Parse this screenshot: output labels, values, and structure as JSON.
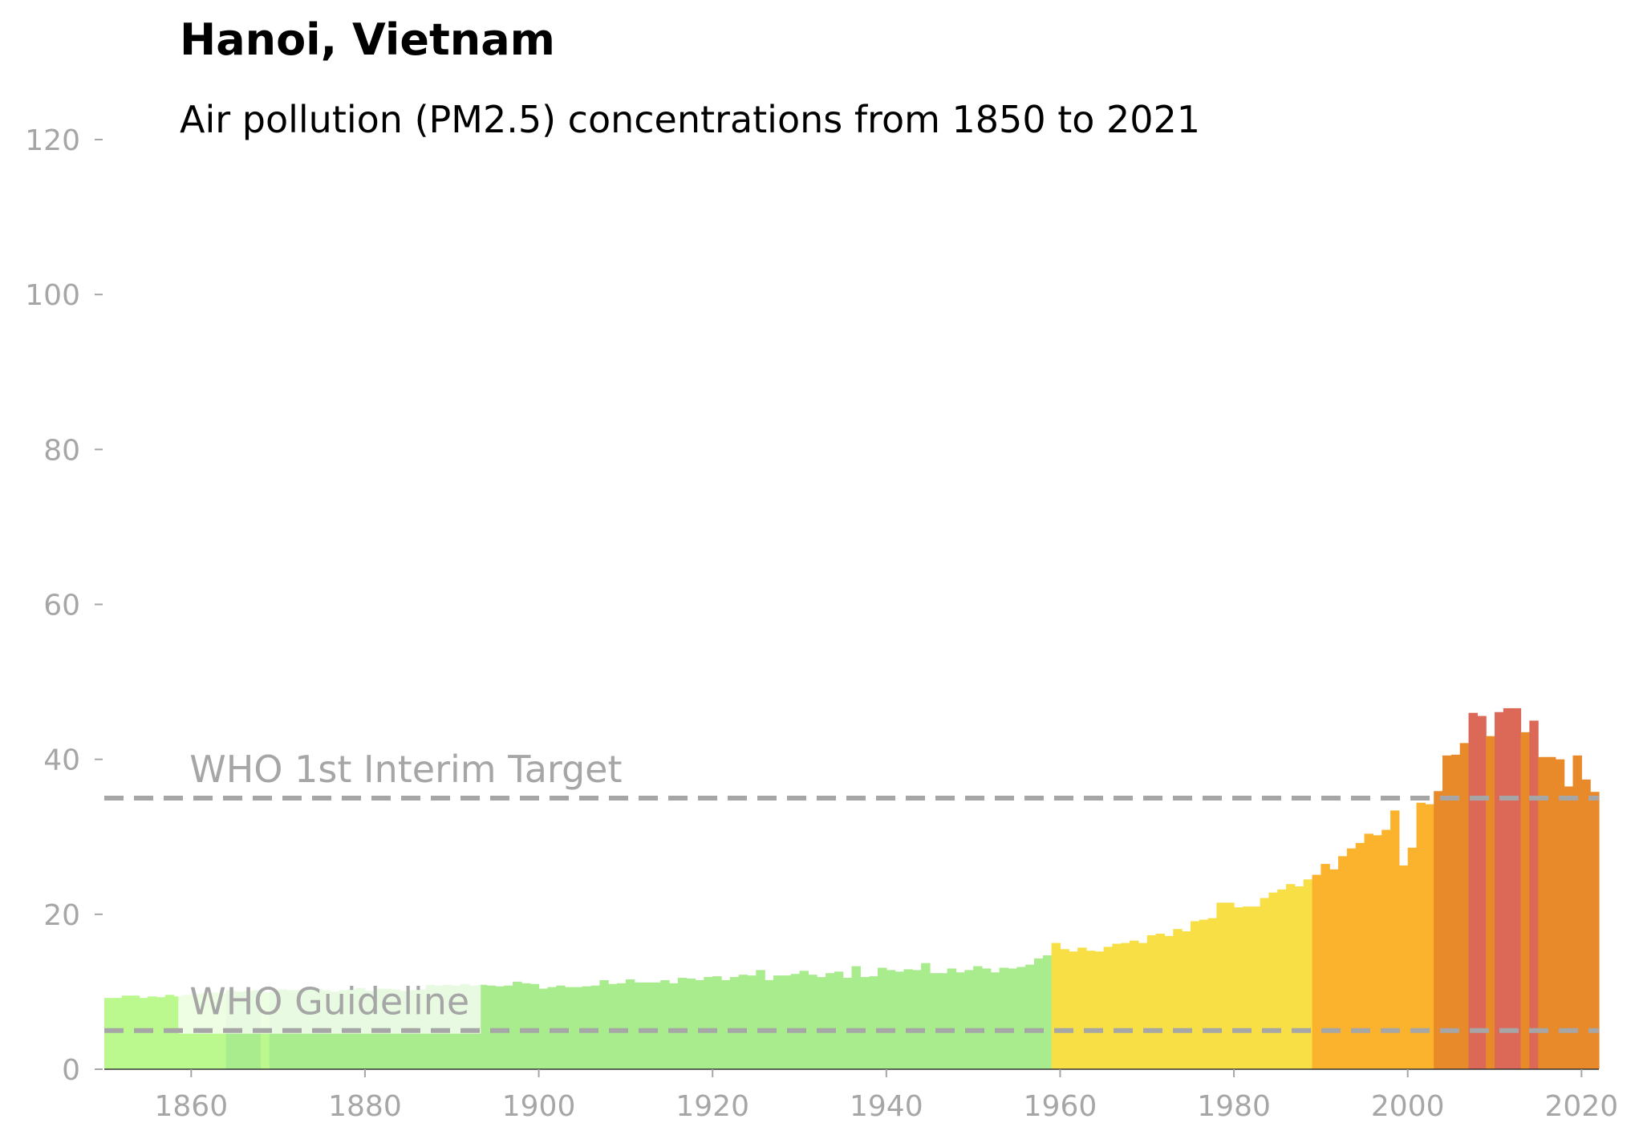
{
  "chart_data": {
    "type": "bar",
    "title": "Hanoi, Vietnam",
    "subtitle": "Air pollution (PM2.5) concentrations from 1850 to 2021",
    "xlabel": "",
    "ylabel": "",
    "xlim": [
      1850,
      2022
    ],
    "ylim": [
      0,
      120
    ],
    "x_ticks": [
      1860,
      1880,
      1900,
      1920,
      1940,
      1960,
      1980,
      2000,
      2020
    ],
    "y_ticks": [
      0,
      20,
      40,
      60,
      80,
      100,
      120
    ],
    "grid": false,
    "legend": "none",
    "reference_lines": [
      {
        "label": "WHO Guideline",
        "value": 5,
        "color": "#a6a6a6"
      },
      {
        "label": "WHO 1st Interim Target",
        "value": 35,
        "color": "#a6a6a6"
      }
    ],
    "color_bands": [
      {
        "max": 10,
        "color": "#bbf98e"
      },
      {
        "max": 15,
        "color": "#a8ec8d"
      },
      {
        "max": 25,
        "color": "#f7df45"
      },
      {
        "max": 35,
        "color": "#fbb22d"
      },
      {
        "max": 45,
        "color": "#e8892a"
      },
      {
        "max": 1000,
        "color": "#dc6958"
      }
    ],
    "years": [
      1850,
      1851,
      1852,
      1853,
      1854,
      1855,
      1856,
      1857,
      1858,
      1859,
      1860,
      1861,
      1862,
      1863,
      1864,
      1865,
      1866,
      1867,
      1868,
      1869,
      1870,
      1871,
      1872,
      1873,
      1874,
      1875,
      1876,
      1877,
      1878,
      1879,
      1880,
      1881,
      1882,
      1883,
      1884,
      1885,
      1886,
      1887,
      1888,
      1889,
      1890,
      1891,
      1892,
      1893,
      1894,
      1895,
      1896,
      1897,
      1898,
      1899,
      1900,
      1901,
      1902,
      1903,
      1904,
      1905,
      1906,
      1907,
      1908,
      1909,
      1910,
      1911,
      1912,
      1913,
      1914,
      1915,
      1916,
      1917,
      1918,
      1919,
      1920,
      1921,
      1922,
      1923,
      1924,
      1925,
      1926,
      1927,
      1928,
      1929,
      1930,
      1931,
      1932,
      1933,
      1934,
      1935,
      1936,
      1937,
      1938,
      1939,
      1940,
      1941,
      1942,
      1943,
      1944,
      1945,
      1946,
      1947,
      1948,
      1949,
      1950,
      1951,
      1952,
      1953,
      1954,
      1955,
      1956,
      1957,
      1958,
      1959,
      1960,
      1961,
      1962,
      1963,
      1964,
      1965,
      1966,
      1967,
      1968,
      1969,
      1970,
      1971,
      1972,
      1973,
      1974,
      1975,
      1976,
      1977,
      1978,
      1979,
      1980,
      1981,
      1982,
      1983,
      1984,
      1985,
      1986,
      1987,
      1988,
      1989,
      1990,
      1991,
      1992,
      1993,
      1994,
      1995,
      1996,
      1997,
      1998,
      1999,
      2000,
      2001,
      2002,
      2003,
      2004,
      2005,
      2006,
      2007,
      2008,
      2009,
      2010,
      2011,
      2012,
      2013,
      2014,
      2015,
      2016,
      2017,
      2018,
      2019,
      2020,
      2021
    ],
    "values": [
      9.2,
      9.2,
      9.5,
      9.5,
      9.2,
      9.4,
      9.3,
      9.6,
      9.4,
      9.6,
      9.7,
      9.8,
      9.9,
      9.8,
      10.2,
      10.0,
      10.1,
      10.2,
      9.9,
      10.0,
      10.3,
      10.2,
      10.2,
      10.3,
      10.4,
      10.2,
      10.0,
      10.2,
      10.3,
      10.5,
      10.1,
      10.4,
      10.4,
      10.3,
      10.1,
      10.2,
      10.3,
      10.9,
      10.8,
      10.9,
      10.8,
      11.0,
      10.8,
      10.9,
      10.8,
      10.7,
      10.8,
      11.3,
      11.1,
      11.0,
      10.4,
      10.6,
      10.8,
      10.6,
      10.6,
      10.7,
      10.8,
      11.5,
      11.0,
      11.1,
      11.6,
      11.2,
      11.2,
      11.2,
      11.5,
      11.1,
      11.8,
      11.7,
      11.5,
      11.9,
      12.0,
      11.5,
      11.9,
      12.2,
      12.1,
      12.8,
      11.5,
      12.1,
      12.1,
      12.3,
      12.7,
      12.2,
      11.9,
      12.4,
      12.6,
      11.8,
      13.3,
      11.9,
      12.0,
      13.1,
      12.8,
      12.6,
      12.9,
      12.8,
      13.7,
      12.4,
      12.4,
      13.0,
      12.5,
      12.8,
      13.3,
      13.0,
      12.5,
      13.1,
      13.0,
      13.2,
      13.5,
      14.3,
      14.7,
      16.3,
      15.5,
      15.2,
      15.7,
      15.3,
      15.2,
      15.8,
      16.2,
      16.3,
      16.6,
      16.3,
      17.3,
      17.5,
      17.2,
      18.1,
      17.8,
      19.1,
      19.3,
      19.5,
      21.5,
      21.5,
      20.9,
      21.0,
      21.0,
      22.1,
      22.8,
      23.2,
      23.9,
      23.6,
      24.5,
      25.1,
      26.5,
      25.8,
      27.5,
      28.5,
      29.2,
      30.4,
      30.2,
      30.9,
      33.4,
      26.3,
      28.6,
      34.4,
      34.2,
      35.9,
      40.5,
      40.6,
      42.1,
      46.0,
      45.6,
      43.0,
      46.1,
      46.6,
      46.6,
      43.5,
      45.0,
      40.3,
      40.3,
      40.0,
      36.5,
      40.5,
      37.4,
      35.8
    ]
  }
}
